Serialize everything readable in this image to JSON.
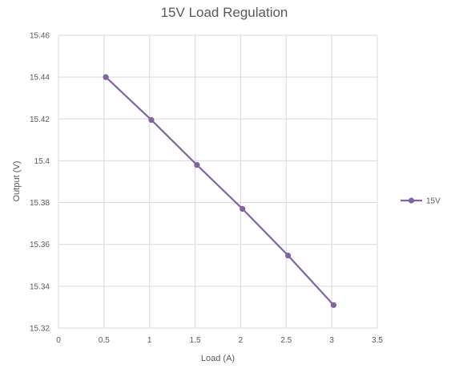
{
  "chart_data": {
    "type": "line",
    "title": "15V Load Regulation",
    "xlabel": "Load (A)",
    "ylabel": "Output (V)",
    "xlim": [
      0,
      3.5
    ],
    "ylim": [
      15.32,
      15.46
    ],
    "x_ticks": [
      "0",
      "0.5",
      "1",
      "1.5",
      "2",
      "2.5",
      "3",
      "3.5"
    ],
    "y_ticks": [
      "15.32",
      "15.34",
      "15.36",
      "15.38",
      "15.4",
      "15.42",
      "15.44",
      "15.46"
    ],
    "grid": true,
    "legend_position": "right",
    "series": [
      {
        "name": "15V",
        "color": "#8064a2",
        "x": [
          0.52,
          1.02,
          1.52,
          2.02,
          2.52,
          3.02
        ],
        "y": [
          15.44,
          15.4195,
          15.398,
          15.377,
          15.3547,
          15.331
        ]
      }
    ]
  }
}
